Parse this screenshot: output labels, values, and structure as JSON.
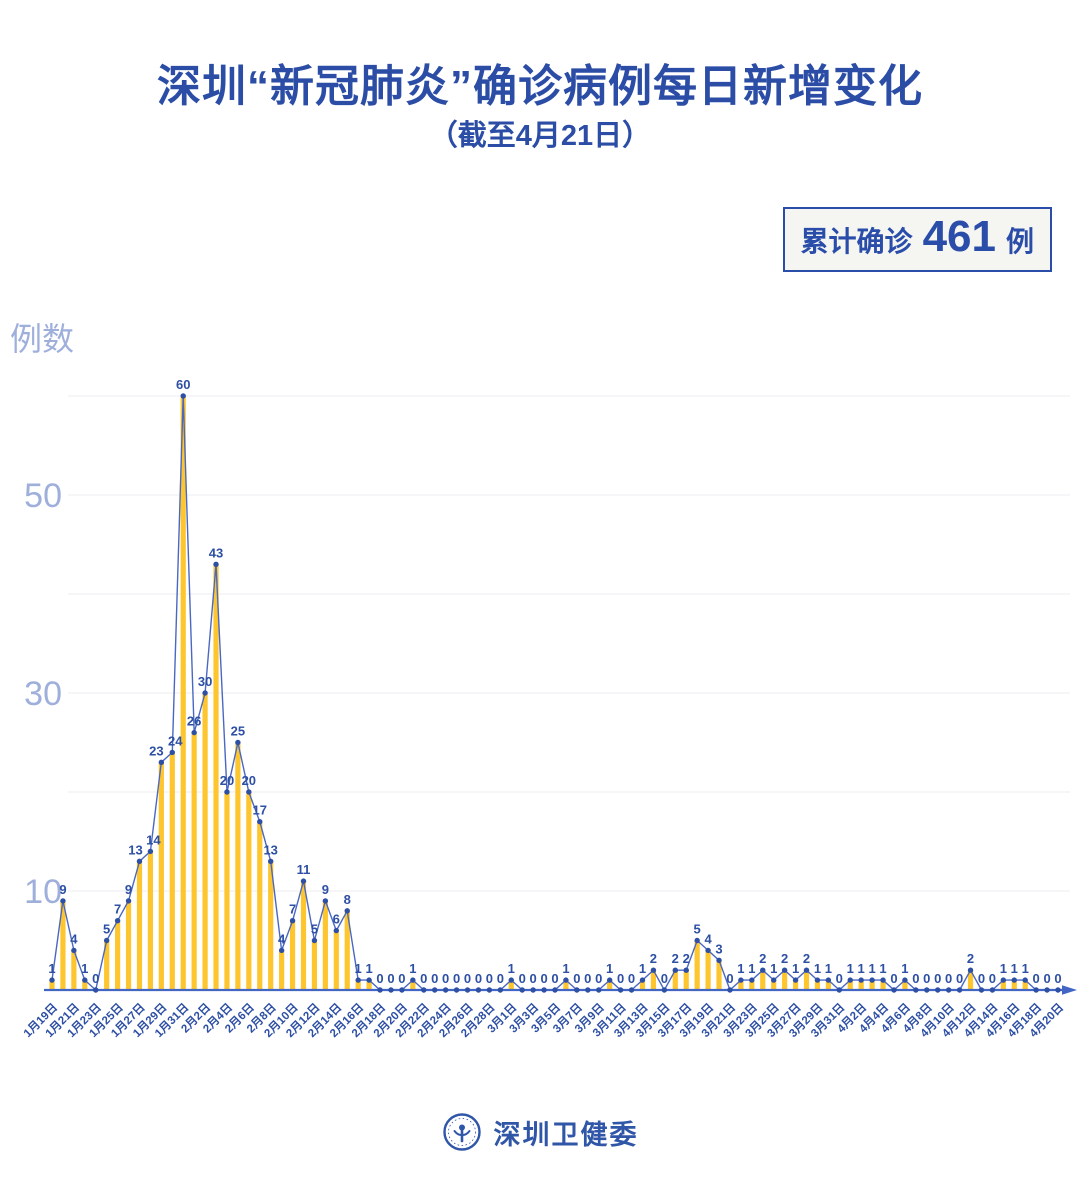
{
  "title": "深圳“新冠肺炎”确诊病例每日新增变化",
  "subtitle": "（截至4月21日）",
  "badge": {
    "prefix": "累计确诊",
    "value": "461",
    "unit": "例"
  },
  "y_axis_title": "例数",
  "footer": {
    "org_name": "深圳卫健委",
    "logo": "shenzhen-health-commission-emblem"
  },
  "colors": {
    "title_blue": "#2b4da6",
    "bar_yellow": "#fec62e",
    "line_blue": "#4a68c2",
    "marker_label_blue": "#2d4fa4",
    "axis_blue": "#4166c4",
    "tick_periwinkle": "#9fafdc",
    "gridline_gray": "#ececf2",
    "badge_bg": "#f5f5f2"
  },
  "chart_data": {
    "type": "bar",
    "line_overlay": true,
    "title": "深圳“新冠肺炎”确诊病例每日新增变化（截至4月21日）",
    "xlabel": "",
    "ylabel": "例数",
    "date_range": {
      "first_point": "1月19日",
      "last_point": "4月20日"
    },
    "values": [
      1,
      9,
      4,
      1,
      0,
      5,
      7,
      9,
      13,
      14,
      23,
      24,
      60,
      26,
      30,
      43,
      20,
      25,
      20,
      17,
      13,
      4,
      7,
      11,
      5,
      9,
      6,
      8,
      1,
      1,
      0,
      0,
      0,
      1,
      0,
      0,
      0,
      0,
      0,
      0,
      0,
      0,
      1,
      0,
      0,
      0,
      0,
      1,
      0,
      0,
      0,
      1,
      0,
      0,
      1,
      2,
      0,
      2,
      2,
      5,
      4,
      3,
      0,
      1,
      1,
      2,
      1,
      2,
      1,
      2,
      1,
      1,
      0,
      1,
      1,
      1,
      1,
      0,
      1,
      0,
      0,
      0,
      0,
      0,
      2,
      0,
      0,
      1,
      1,
      1,
      0,
      0,
      0
    ],
    "values_total": 461,
    "x_labels": [
      "1月19日",
      "1月21日",
      "1月23日",
      "1月25日",
      "1月27日",
      "1月29日",
      "1月31日",
      "2月2日",
      "2月4日",
      "2月6日",
      "2月8日",
      "2月10日",
      "2月12日",
      "2月14日",
      "2月16日",
      "2月18日",
      "2月20日",
      "2月22日",
      "2月24日",
      "2月26日",
      "2月28日",
      "3月1日",
      "3月3日",
      "3月5日",
      "3月7日",
      "3月9日",
      "3月11日",
      "3月13日",
      "3月15日",
      "3月17日",
      "3月19日",
      "3月21日",
      "3月23日",
      "3月25日",
      "3月27日",
      "3月29日",
      "3月31日",
      "4月2日",
      "4月4日",
      "4月6日",
      "4月8日",
      "4月10日",
      "4月12日",
      "4月14日",
      "4月16日",
      "4月18日",
      "4月20日"
    ],
    "x_label_every_n_points": 2,
    "yticks": [
      10,
      30,
      50
    ],
    "gridlines": [
      10,
      20,
      30,
      40,
      50,
      60
    ],
    "ylim": [
      0,
      63
    ],
    "grid": true,
    "legend": "none"
  }
}
